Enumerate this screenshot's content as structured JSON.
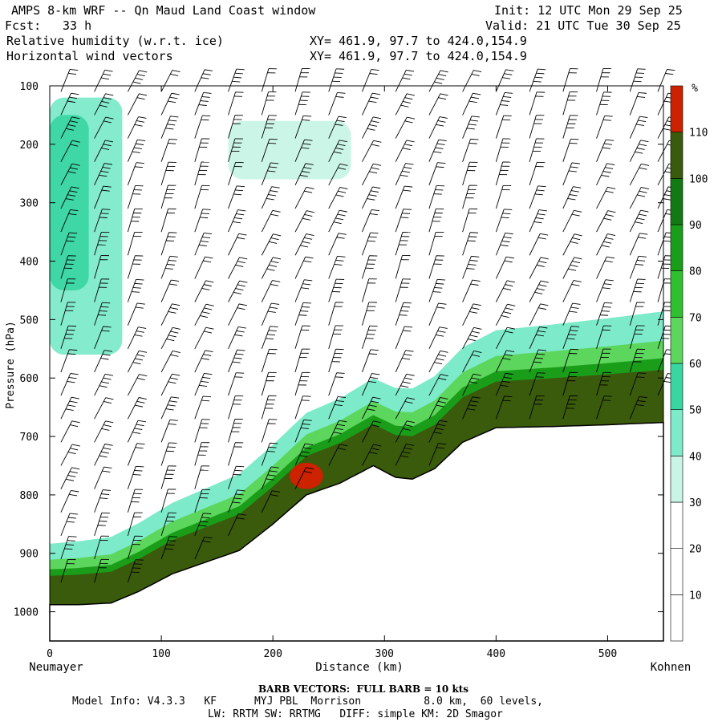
{
  "header": {
    "title": "AMPS 8-km WRF -- Qn Maud Land Coast window",
    "fcst_label": "Fcst:",
    "fcst_value": "33 h",
    "init": "Init: 12 UTC Mon 29 Sep 25",
    "valid": "Valid: 21 UTC Tue 30 Sep 25",
    "field1": "Relative humidity (w.r.t. ice)",
    "field2": "Horizontal wind vectors",
    "xy1": "XY= 461.9, 97.7 to 424.0,154.9",
    "xy2": "XY= 461.9, 97.7 to 424.0,154.9"
  },
  "chart_data": {
    "type": "heatmap",
    "title": "Relative humidity (w.r.t. ice) cross-section with horizontal wind vectors",
    "xlabel": "Distance (km)",
    "ylabel": "Pressure (hPa)",
    "xlim": [
      0,
      550
    ],
    "ylim": [
      1050,
      100
    ],
    "x_ticks": [
      0,
      100,
      200,
      300,
      400,
      500
    ],
    "y_ticks": [
      100,
      200,
      300,
      400,
      500,
      600,
      700,
      800,
      900,
      1000
    ],
    "left_end_label": "Neumayer",
    "right_end_label": "Kohnen",
    "colorbar": {
      "unit": "%",
      "levels": [
        10,
        20,
        30,
        40,
        50,
        60,
        70,
        80,
        90,
        100,
        110
      ],
      "colors": [
        "#ffffff",
        "#ffffff",
        "#ffffff",
        "#c8f5e6",
        "#7deac9",
        "#3ad6a2",
        "#5cd65c",
        "#2fbf2f",
        "#1a9e1a",
        "#137a13",
        "#3a5a0c",
        "#cc2200"
      ]
    },
    "terrain_surface_pressure": {
      "x": [
        0,
        25,
        55,
        80,
        110,
        140,
        170,
        200,
        230,
        260,
        290,
        310,
        325,
        345,
        370,
        400,
        450,
        500,
        550
      ],
      "p": [
        988,
        988,
        985,
        965,
        935,
        915,
        895,
        850,
        800,
        780,
        750,
        770,
        773,
        755,
        710,
        685,
        683,
        680,
        676
      ]
    },
    "rh_regions": [
      {
        "name": "upper-left moist region",
        "rh": 40,
        "x": [
          0,
          65
        ],
        "p": [
          120,
          560
        ]
      },
      {
        "name": "upper-left core",
        "rh": 50,
        "x": [
          0,
          35
        ],
        "p": [
          150,
          450
        ]
      },
      {
        "name": "upper-mid moist band",
        "rh": 30,
        "x": [
          160,
          270
        ],
        "p": [
          160,
          260
        ]
      },
      {
        "name": "boundary layer moist layer",
        "rh": 90,
        "x": [
          0,
          550
        ],
        "p": [
          520,
          990
        ]
      },
      {
        "name": "supersaturated patch",
        "rh": 110,
        "x": [
          215,
          245
        ],
        "p": [
          745,
          790
        ]
      }
    ],
    "wind_barbs": {
      "note": "BARB VECTORS: FULL BARB = 10 kts",
      "columns_x": [
        10,
        40,
        70,
        100,
        130,
        160,
        190,
        220,
        250,
        280,
        310,
        340,
        370,
        400,
        430,
        460,
        490,
        520,
        545
      ],
      "levels_p": [
        110,
        150,
        190,
        230,
        270,
        310,
        350,
        390,
        430,
        470,
        510,
        550,
        590,
        630,
        670,
        710,
        750,
        790,
        830,
        870,
        910,
        950
      ]
    }
  },
  "footer": {
    "barb_note": "BARB VECTORS:  FULL BARB = 10 kts",
    "model_info": "Model Info: V4.3.3   KF      MYJ PBL  Morrison          8.0 km,  60 levels,",
    "physics": "LW: RRTM SW: RRTMG   DIFF: simple KM: 2D Smagor"
  }
}
